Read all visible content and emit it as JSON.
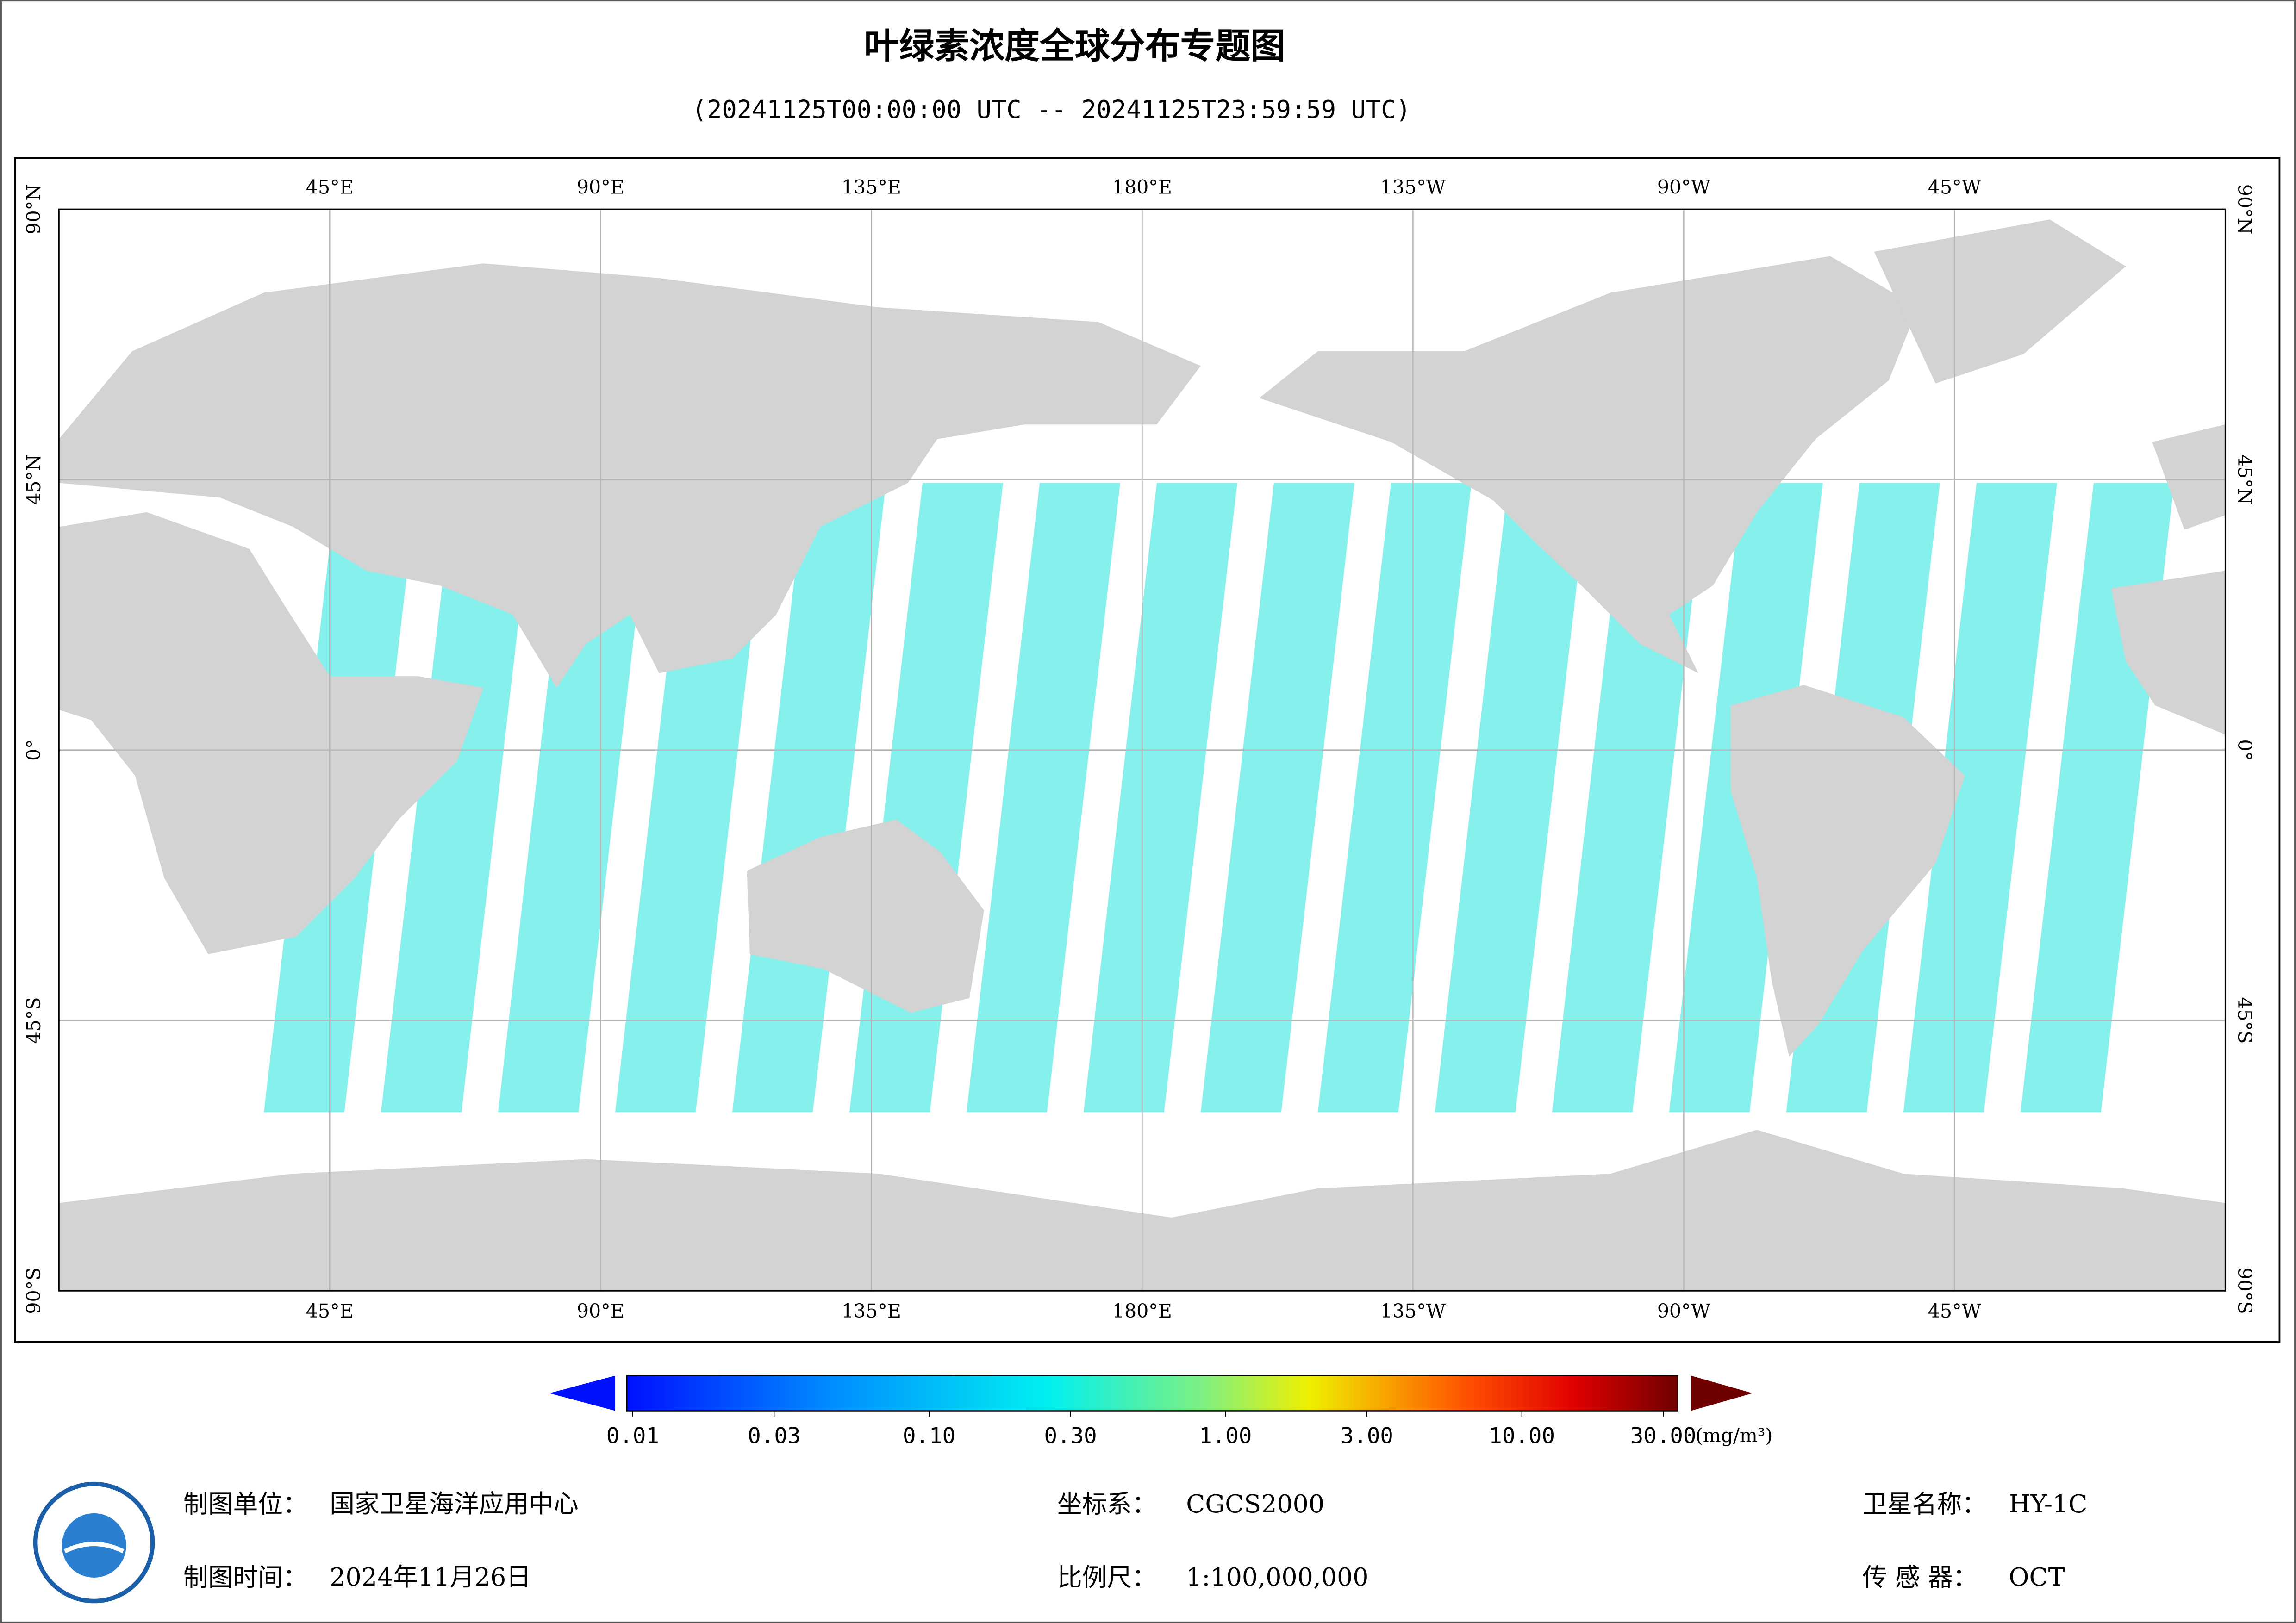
{
  "header": {
    "title": "叶绿素浓度全球分布专题图",
    "subtitle": "(20241125T00:00:00 UTC -- 20241125T23:59:59 UTC)"
  },
  "map": {
    "lonlim": [
      0,
      360
    ],
    "latlim": [
      -90,
      90
    ],
    "grid": true,
    "land_color": "#d3d3d3",
    "lonticks": [
      {
        "value": 45,
        "label": "45°E"
      },
      {
        "value": 90,
        "label": "90°E"
      },
      {
        "value": 135,
        "label": "135°E"
      },
      {
        "value": 180,
        "label": "180°E"
      },
      {
        "value": 225,
        "label": "135°W"
      },
      {
        "value": 270,
        "label": "90°W"
      },
      {
        "value": 315,
        "label": "45°W"
      }
    ],
    "latticks": [
      {
        "value": 90,
        "label": "90°N"
      },
      {
        "value": 45,
        "label": "45°N"
      },
      {
        "value": 0,
        "label": "0°"
      },
      {
        "value": -45,
        "label": "45°S"
      },
      {
        "value": -90,
        "label": "90°S"
      }
    ]
  },
  "colorbar": {
    "lim": [
      0.01,
      30
    ],
    "log": true,
    "unit": "(mg/m³)",
    "ticks": [
      {
        "value": 0.01,
        "label": "0.01"
      },
      {
        "value": 0.03,
        "label": "0.03"
      },
      {
        "value": 0.1,
        "label": "0.10"
      },
      {
        "value": 0.3,
        "label": "0.30"
      },
      {
        "value": 1,
        "label": "1.00"
      },
      {
        "value": 3,
        "label": "3.00"
      },
      {
        "value": 10,
        "label": "10.00"
      },
      {
        "value": 30,
        "label": "30.00"
      }
    ]
  },
  "footer": {
    "fields": [
      {
        "label": "制图单位：",
        "value": "国家卫星海洋应用中心"
      },
      {
        "label": "坐标系：",
        "value": "CGCS2000"
      },
      {
        "label": "卫星名称：",
        "value": "HY-1C"
      },
      {
        "label": "制图时间：",
        "value": "2024年11月26日"
      },
      {
        "label": "比例尺：",
        "value": "1:100,000,000"
      },
      {
        "label": "传 感 器：",
        "value": "OCT"
      }
    ]
  }
}
